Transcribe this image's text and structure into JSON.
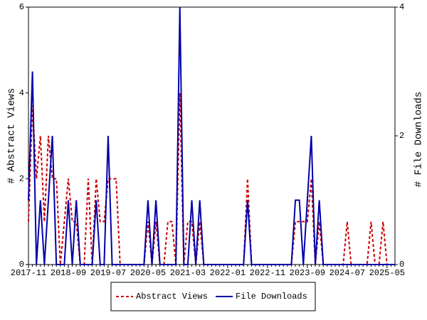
{
  "chart_data": {
    "type": "line",
    "y_label": "# Abstract Views",
    "y2_label": "# File Downloads",
    "categories": [
      "2017-11",
      null,
      null,
      null,
      null,
      null,
      null,
      null,
      null,
      null,
      "2018-09",
      null,
      null,
      null,
      null,
      null,
      null,
      null,
      null,
      null,
      "2019-07",
      null,
      null,
      null,
      null,
      null,
      null,
      null,
      null,
      null,
      "2020-05",
      null,
      null,
      null,
      null,
      null,
      null,
      null,
      null,
      null,
      "2021-03",
      null,
      null,
      null,
      null,
      null,
      null,
      null,
      null,
      null,
      "2022-01",
      null,
      null,
      null,
      null,
      null,
      null,
      null,
      null,
      null,
      "2022-11",
      null,
      null,
      null,
      null,
      null,
      null,
      null,
      null,
      null,
      "2023-09",
      null,
      null,
      null,
      null,
      null,
      null,
      null,
      null,
      null,
      "2024-07",
      null,
      null,
      null,
      null,
      null,
      null,
      null,
      null,
      null,
      "2025-05",
      null,
      null
    ],
    "series": [
      {
        "name": "Abstract Views",
        "color": "#cc0000",
        "dashed": true,
        "axis": "y",
        "values": [
          1,
          3.7,
          2,
          3,
          1,
          3,
          2,
          2,
          0,
          1,
          2,
          1,
          1,
          0,
          0,
          2,
          0,
          2,
          1,
          1,
          2,
          2,
          2,
          0,
          0,
          0,
          0,
          0,
          0,
          0,
          1,
          0,
          1,
          0,
          0,
          1,
          1,
          0,
          4,
          0,
          1,
          1,
          0,
          1,
          0,
          0,
          0,
          0,
          0,
          0,
          0,
          0,
          0,
          0,
          0,
          2,
          0,
          0,
          0,
          0,
          0,
          0,
          0,
          0,
          0,
          0,
          0,
          1,
          1,
          1,
          1,
          2,
          0,
          1,
          0,
          0,
          0,
          0,
          0,
          0,
          1,
          0,
          0,
          0,
          0,
          0,
          1,
          0,
          0,
          1,
          0,
          0,
          0
        ]
      },
      {
        "name": "File Downloads",
        "color": "#0000aa",
        "dashed": false,
        "axis": "y2",
        "values": [
          1,
          3,
          0,
          1,
          0,
          1,
          2,
          0,
          0,
          0,
          1,
          0,
          1,
          0,
          0,
          0,
          0,
          1,
          0,
          0,
          2,
          0,
          0,
          0,
          0,
          0,
          0,
          0,
          0,
          0,
          1,
          0,
          1,
          0,
          0,
          0,
          0,
          0,
          4,
          0,
          0,
          1,
          0,
          1,
          0,
          0,
          0,
          0,
          0,
          0,
          0,
          0,
          0,
          0,
          0,
          1,
          0,
          0,
          0,
          0,
          0,
          0,
          0,
          0,
          0,
          0,
          0,
          1,
          1,
          0,
          1,
          2,
          0,
          1,
          0,
          0,
          0,
          0,
          0,
          0,
          0,
          0,
          0,
          0,
          0,
          0,
          0,
          0,
          0,
          0,
          0,
          0,
          0
        ]
      }
    ],
    "ylim": [
      0,
      6
    ],
    "yticks": [
      0,
      2,
      4,
      6
    ],
    "y2lim": [
      0,
      4
    ],
    "y2ticks": [
      0,
      2,
      4
    ],
    "legend": "bottom"
  }
}
